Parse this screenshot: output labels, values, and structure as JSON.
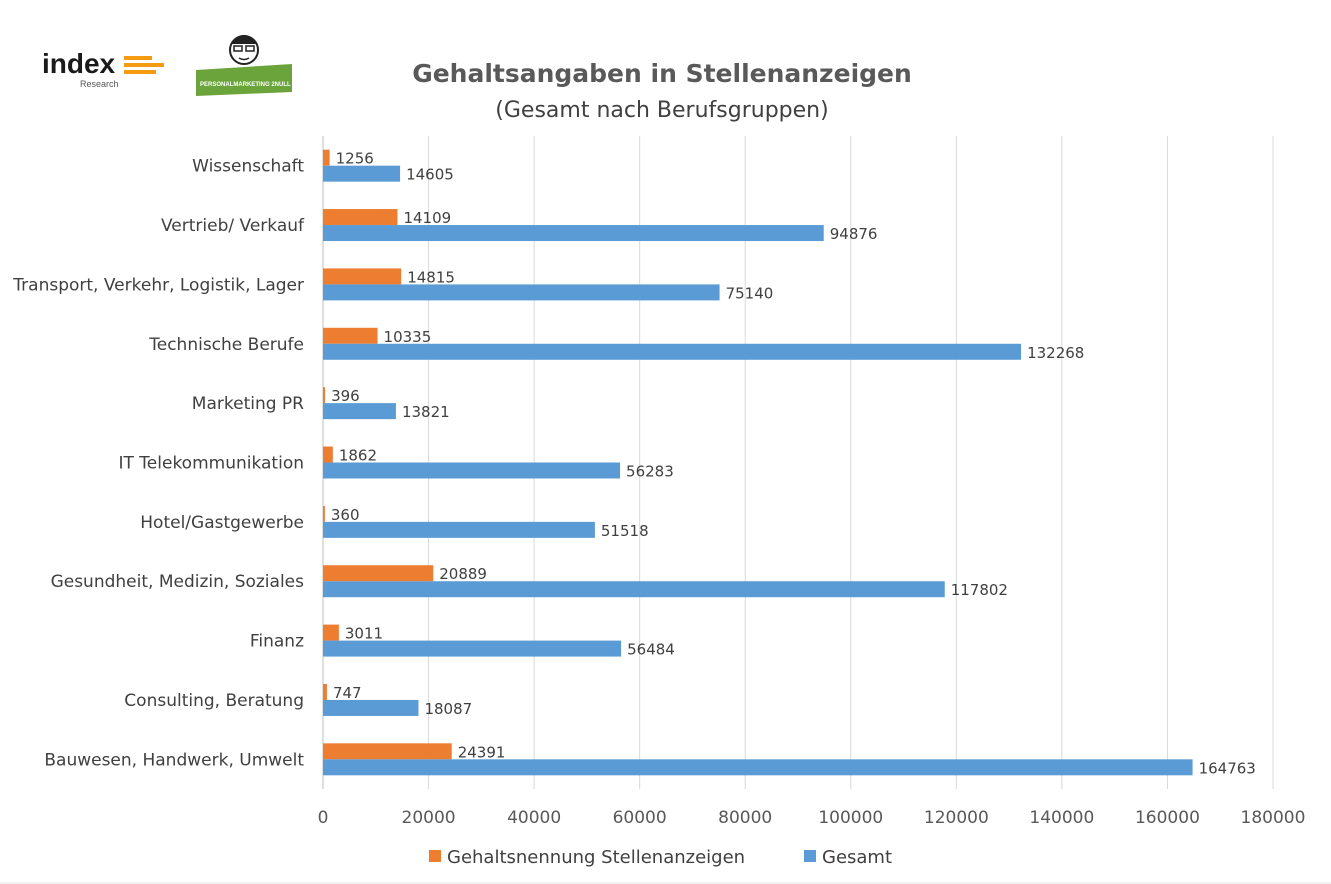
{
  "logos": {
    "index_name": "index",
    "index_sub": "Research",
    "pm_name": "PERSONALMARKETING 2NULL"
  },
  "colors": {
    "orange": "#ED7D31",
    "blue": "#5B9BD5",
    "grid": "#D9D9D9",
    "logo_green": "#6AA43A"
  },
  "chart_data": {
    "type": "bar",
    "orientation": "horizontal",
    "title": "Gehaltsangaben in Stellenanzeigen",
    "subtitle": "(Gesamt nach Berufsgruppen)",
    "xlabel": "",
    "ylabel": "",
    "xlim": [
      0,
      180000
    ],
    "ticks": [
      0,
      20000,
      40000,
      60000,
      80000,
      100000,
      120000,
      140000,
      160000,
      180000
    ],
    "grid": true,
    "legend_position": "bottom",
    "categories": [
      "Wissenschaft",
      "Vertrieb/ Verkauf",
      "Transport, Verkehr, Logistik, Lager",
      "Technische Berufe",
      "Marketing PR",
      "IT Telekommunikation",
      "Hotel/Gastgewerbe",
      "Gesundheit, Medizin, Soziales",
      "Finanz",
      "Consulting, Beratung",
      "Bauwesen, Handwerk, Umwelt"
    ],
    "series": [
      {
        "name": "Gehaltsnennung Stellenanzeigen",
        "color": "#ED7D31",
        "values": [
          1256,
          14109,
          14815,
          10335,
          396,
          1862,
          360,
          20889,
          3011,
          747,
          24391
        ]
      },
      {
        "name": "Gesamt",
        "color": "#5B9BD5",
        "values": [
          14605,
          94876,
          75140,
          132268,
          13821,
          56283,
          51518,
          117802,
          56484,
          18087,
          164763
        ]
      }
    ]
  }
}
